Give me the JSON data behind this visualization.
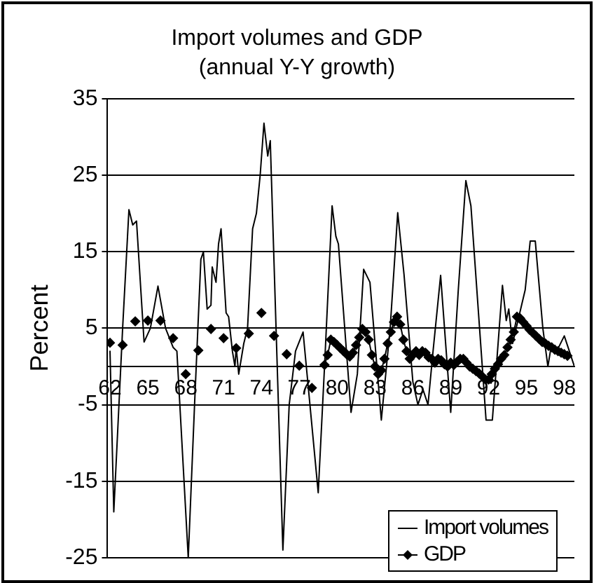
{
  "chart_data": {
    "type": "line",
    "title": "Import volumes and GDP",
    "subtitle": "(annual Y-Y growth)",
    "ylabel": "Percent",
    "xlim": [
      61.8,
      98.8
    ],
    "xticks": [
      62,
      65,
      68,
      71,
      74,
      77,
      80,
      83,
      86,
      89,
      92,
      95,
      98
    ],
    "ylim": [
      -25,
      35
    ],
    "yticks": [
      -25,
      -15,
      -5,
      5,
      15,
      25,
      35
    ],
    "grid": "y",
    "legend": "bottom right",
    "series": [
      {
        "name": "Import volumes",
        "color": "#000000",
        "marker": "none",
        "x": [
          62.0,
          62.3,
          63.0,
          63.5,
          63.8,
          64.1,
          64.7,
          65.2,
          65.8,
          66.4,
          67.0,
          67.3,
          68.2,
          68.7,
          69.2,
          69.4,
          69.7,
          70.0,
          70.1,
          70.4,
          70.6,
          70.8,
          71.2,
          71.4,
          71.7,
          71.9,
          72.0,
          72.2,
          72.6,
          72.9,
          73.3,
          73.6,
          73.9,
          74.2,
          74.5,
          74.7,
          75.7,
          76.2,
          76.7,
          77.3,
          78.5,
          79.0,
          79.6,
          79.9,
          80.1,
          81.1,
          81.6,
          82.1,
          82.6,
          83.5,
          84.2,
          84.8,
          85.3,
          86.0,
          86.4,
          86.8,
          87.2,
          87.6,
          88.2,
          89.0,
          89.6,
          90.2,
          90.6,
          91.8,
          92.3,
          93.1,
          93.4,
          93.6,
          93.9,
          94.9,
          95.3,
          95.7,
          96.3,
          96.7,
          97.0,
          97.4,
          98.0,
          98.4,
          98.8
        ],
        "values": [
          2,
          -19,
          5,
          20.5,
          18.5,
          19,
          3.2,
          5,
          10.5,
          5,
          2.5,
          2,
          -25,
          -5,
          14,
          15,
          7.5,
          8,
          13,
          11,
          16,
          18,
          7,
          6.5,
          2,
          0,
          2.5,
          -1,
          3,
          5,
          18,
          20,
          25,
          31.8,
          27.5,
          29.5,
          -24,
          -5,
          2,
          4.5,
          -16.5,
          0,
          21,
          17,
          16,
          -6,
          -1,
          12.7,
          11,
          -7,
          5,
          20.1,
          12,
          -2,
          -5,
          -3,
          -5,
          2,
          11.9,
          -6,
          10,
          24.3,
          21,
          -7,
          -7,
          10.6,
          6,
          7.5,
          3,
          10,
          16.4,
          16.4,
          5,
          0,
          3,
          2,
          4,
          2,
          0
        ]
      },
      {
        "name": "GDP",
        "color": "#000000",
        "marker": "diamond",
        "x": [
          62,
          62.5,
          63,
          63.5,
          64,
          64.5,
          65,
          65.5,
          66,
          66.5,
          67,
          67.5,
          68,
          68.5,
          69,
          69.5,
          70,
          70.5,
          71,
          71.5,
          72,
          72.5,
          73,
          73.5,
          74,
          74.5,
          75,
          75.5,
          76,
          76.5,
          77,
          77.5,
          78,
          78.5,
          79.0,
          79.25,
          79.5,
          79.75,
          80,
          80.25,
          80.5,
          80.75,
          81,
          81.25,
          81.5,
          81.75,
          82,
          82.25,
          82.5,
          82.75,
          83,
          83.25,
          83.5,
          83.75,
          84,
          84.25,
          84.5,
          84.75,
          85,
          85.25,
          85.5,
          85.75,
          86,
          86.25,
          86.5,
          86.75,
          87,
          87.25,
          87.5,
          87.75,
          88,
          88.25,
          88.5,
          88.75,
          89,
          89.25,
          89.5,
          89.75,
          90,
          90.25,
          90.5,
          90.75,
          91,
          91.25,
          91.5,
          91.75,
          92,
          92.25,
          92.5,
          92.75,
          93,
          93.25,
          93.5,
          93.75,
          94,
          94.25,
          94.5,
          94.75,
          95,
          95.25,
          95.5,
          95.75,
          96,
          96.25,
          96.5,
          96.75,
          97,
          97.25,
          97.5,
          97.75,
          98,
          98.25
        ],
        "values": [
          3.1,
          null,
          2.8,
          null,
          5.9,
          null,
          6,
          null,
          6,
          null,
          3.7,
          null,
          -1,
          null,
          2.1,
          null,
          4.9,
          null,
          3.7,
          null,
          2.4,
          null,
          4.3,
          null,
          7,
          null,
          4,
          null,
          1.6,
          null,
          0.1,
          null,
          -2.8,
          null,
          0.2,
          1.5,
          3.5,
          3.2,
          2.8,
          2.4,
          2,
          1.6,
          1.3,
          1.8,
          2.8,
          3.8,
          4.9,
          4.5,
          3.5,
          1.5,
          0,
          -1,
          -0.5,
          1,
          3,
          4.5,
          5.8,
          6.5,
          5.5,
          3.5,
          2,
          1,
          1.5,
          2,
          1.5,
          2,
          1.8,
          1.2,
          1,
          0.5,
          1,
          0.8,
          0.3,
          0,
          0.5,
          0.2,
          0.6,
          1,
          1,
          0.5,
          0,
          -0.3,
          -0.6,
          -0.9,
          -1.3,
          -1.7,
          -1.7,
          -1,
          -0.3,
          0.3,
          1,
          1.5,
          2.5,
          3.5,
          4.5,
          6.5,
          6.3,
          5.8,
          5.3,
          4.8,
          4.4,
          4,
          3.6,
          3.2,
          3,
          2.7,
          2.5,
          2.2,
          2,
          1.8,
          1.6,
          1.4
        ]
      }
    ]
  }
}
